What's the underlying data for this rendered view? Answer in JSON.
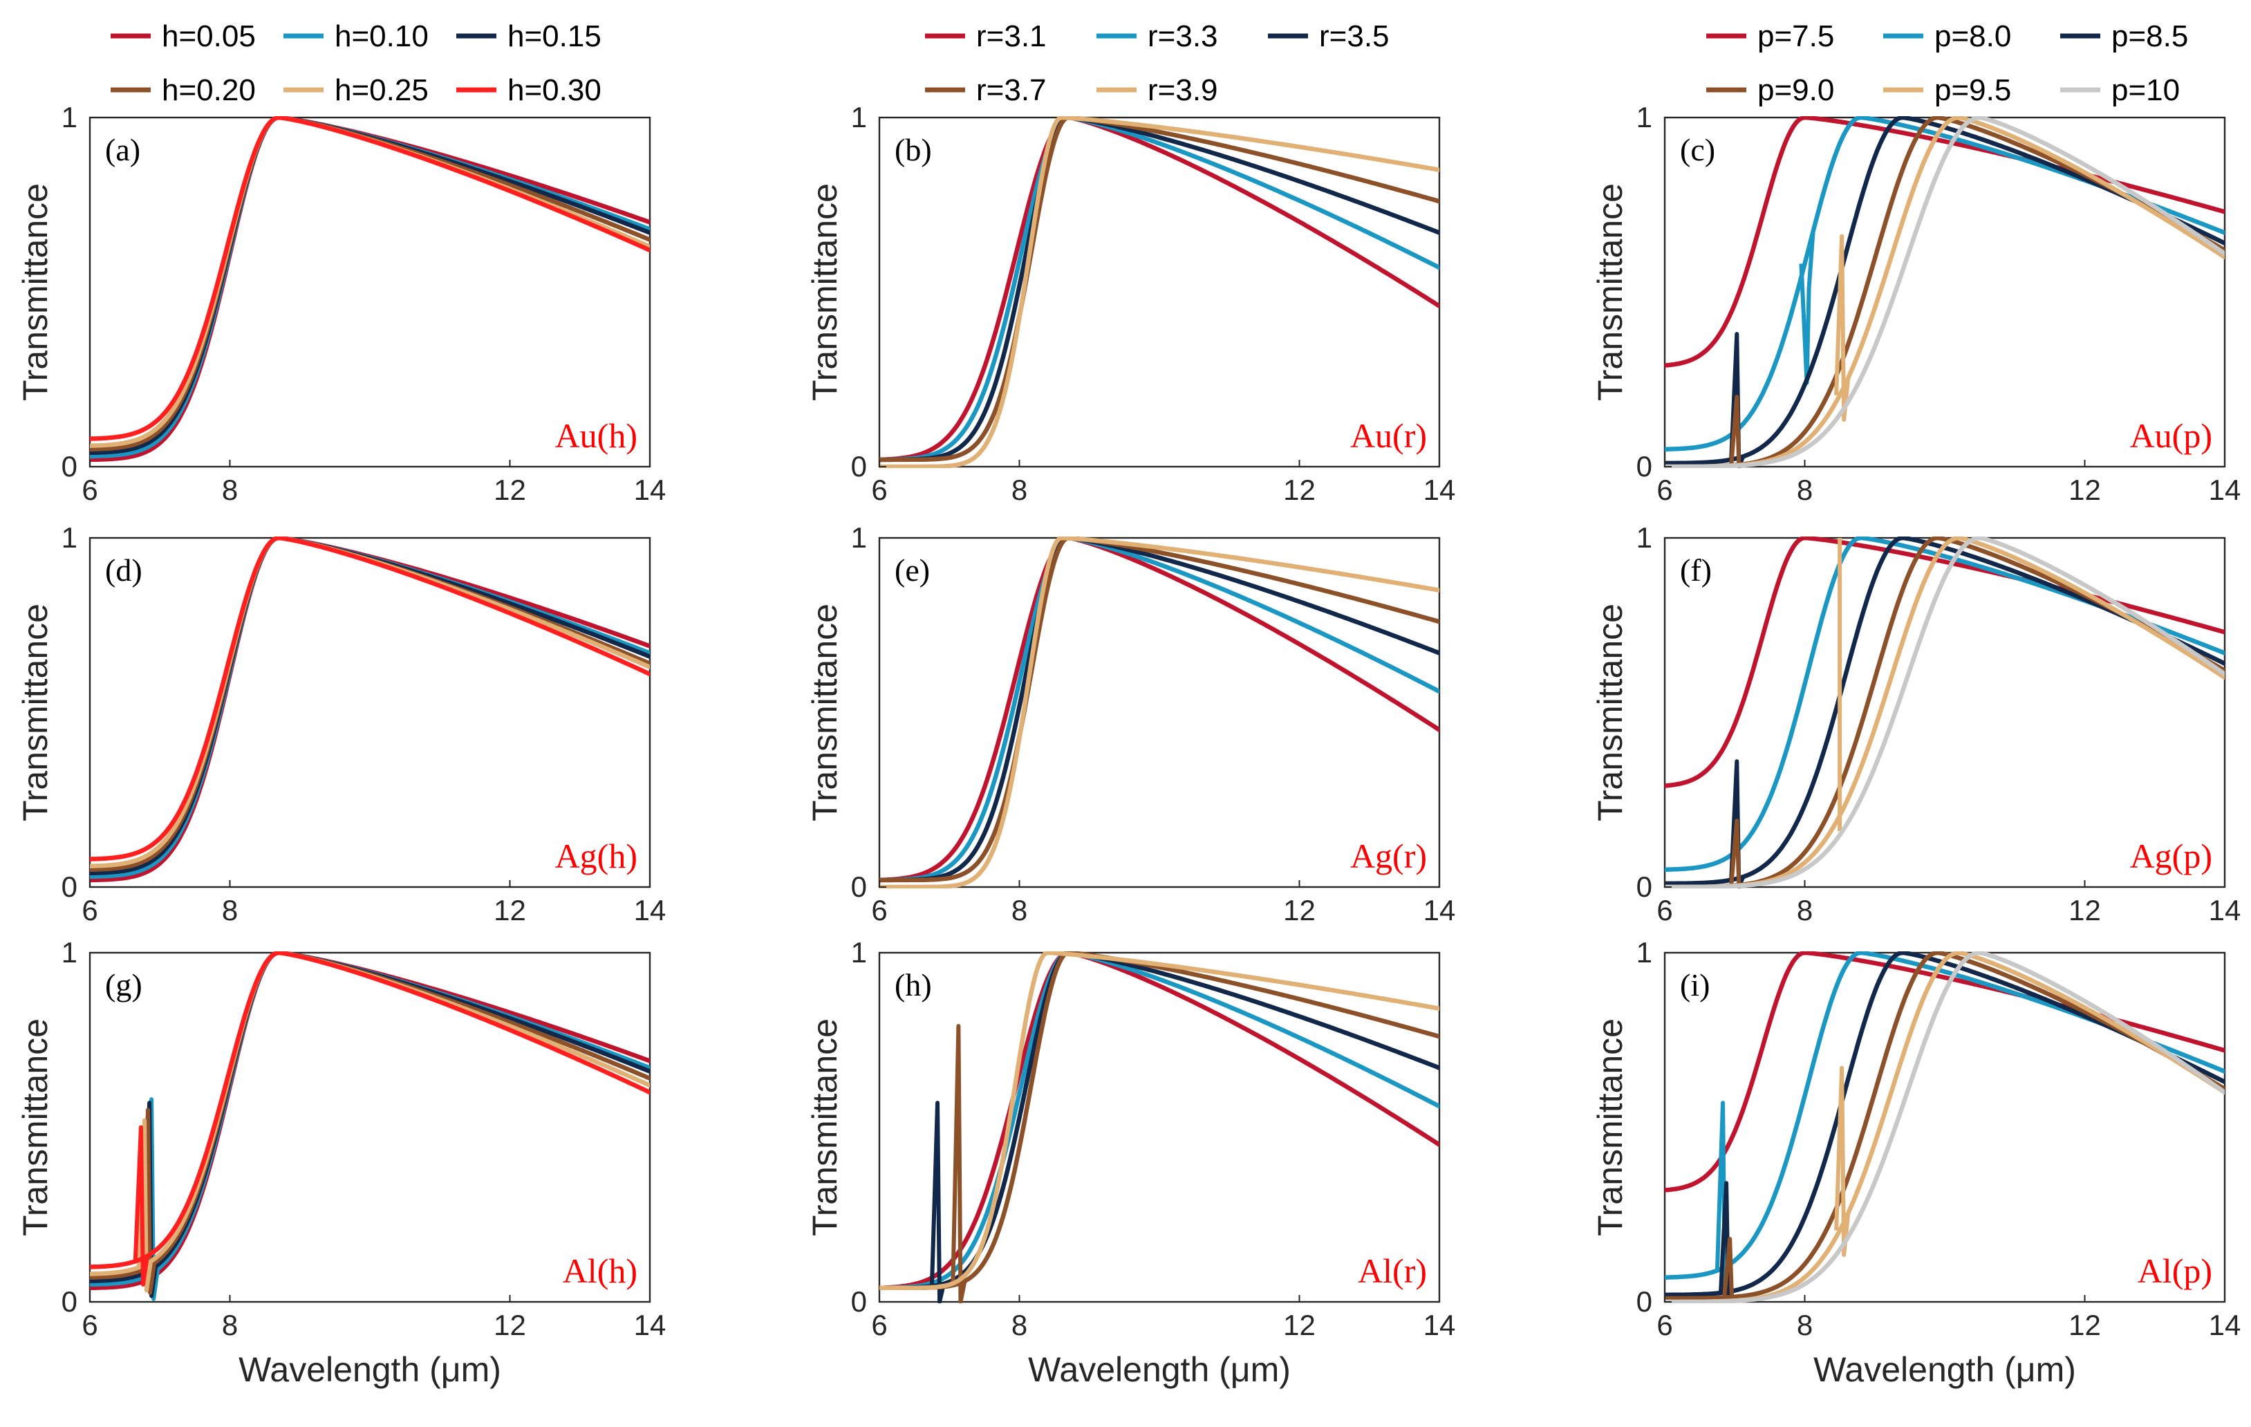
{
  "colors": {
    "crimson": "#c0142e",
    "teal": "#1a97c3",
    "navy": "#12284a",
    "brown": "#8c5128",
    "tan": "#e0b074",
    "red": "#ff1f1f",
    "lightgray": "#c8c8c8",
    "material_label": "#ff0000"
  },
  "axes_text": {
    "xlabel": "Wavelength (μm)",
    "ylabel": "Transmittance"
  },
  "legends": {
    "h": {
      "entries": [
        "h=0.05",
        "h=0.10",
        "h=0.15",
        "h=0.20",
        "h=0.25",
        "h=0.30"
      ],
      "colors": [
        "crimson",
        "teal",
        "navy",
        "brown",
        "tan",
        "red"
      ]
    },
    "r": {
      "entries": [
        "r=3.1",
        "r=3.3",
        "r=3.5",
        "r=3.7",
        "r=3.9"
      ],
      "colors": [
        "crimson",
        "teal",
        "navy",
        "brown",
        "tan"
      ]
    },
    "p": {
      "entries": [
        "p=7.5",
        "p=8.0",
        "p=8.5",
        "p=9.0",
        "p=9.5",
        "p=10"
      ],
      "colors": [
        "crimson",
        "teal",
        "navy",
        "brown",
        "tan",
        "lightgray"
      ]
    }
  },
  "chart_data": [
    {
      "id": "a",
      "panel_label": "(a)",
      "material_label": "Au(h)",
      "type": "line",
      "xlabel": "",
      "ylabel": "Transmittance",
      "xlim": [
        6,
        14
      ],
      "ylim": [
        0,
        1
      ],
      "xticks": [
        6,
        8,
        12,
        14
      ],
      "yticks": [
        0,
        1
      ],
      "param": "h",
      "series": [
        {
          "name": "h=0.05",
          "color": "crimson",
          "peak_x": 8.7,
          "start_y": 0.02,
          "w_left": 0.98,
          "end_y": 0.7
        },
        {
          "name": "h=0.10",
          "color": "teal",
          "peak_x": 8.7,
          "start_y": 0.03,
          "w_left": 0.99,
          "end_y": 0.68
        },
        {
          "name": "h=0.15",
          "color": "navy",
          "peak_x": 8.7,
          "start_y": 0.04,
          "w_left": 1.0,
          "end_y": 0.67
        },
        {
          "name": "h=0.20",
          "color": "brown",
          "peak_x": 8.7,
          "start_y": 0.05,
          "w_left": 1.01,
          "end_y": 0.65
        },
        {
          "name": "h=0.25",
          "color": "tan",
          "peak_x": 8.7,
          "start_y": 0.06,
          "w_left": 1.02,
          "end_y": 0.63
        },
        {
          "name": "h=0.30",
          "color": "red",
          "peak_x": 8.7,
          "start_y": 0.08,
          "w_left": 1.03,
          "end_y": 0.62
        }
      ]
    },
    {
      "id": "b",
      "panel_label": "(b)",
      "material_label": "Au(r)",
      "type": "line",
      "xlabel": "",
      "ylabel": "Transmittance",
      "xlim": [
        6,
        14
      ],
      "ylim": [
        0,
        1
      ],
      "xticks": [
        6,
        8,
        12,
        14
      ],
      "yticks": [
        0,
        1
      ],
      "param": "r",
      "series": [
        {
          "name": "r=3.1",
          "color": "crimson",
          "peak_x": 8.7,
          "start_y": 0.02,
          "w_left": 1.05,
          "end_y": 0.46
        },
        {
          "name": "r=3.3",
          "color": "teal",
          "peak_x": 8.7,
          "start_y": 0.02,
          "w_left": 0.95,
          "end_y": 0.57
        },
        {
          "name": "r=3.5",
          "color": "navy",
          "peak_x": 8.7,
          "start_y": 0.02,
          "w_left": 0.85,
          "end_y": 0.67
        },
        {
          "name": "r=3.7",
          "color": "brown",
          "peak_x": 8.7,
          "start_y": 0.02,
          "w_left": 0.75,
          "end_y": 0.76
        },
        {
          "name": "r=3.9",
          "color": "tan",
          "peak_x": 8.6,
          "start_y": 0.0,
          "w_left": 0.65,
          "end_y": 0.85
        }
      ]
    },
    {
      "id": "c",
      "panel_label": "(c)",
      "material_label": "Au(p)",
      "type": "line",
      "xlabel": "",
      "ylabel": "Transmittance",
      "xlim": [
        6,
        14
      ],
      "ylim": [
        0,
        1
      ],
      "xticks": [
        6,
        8,
        12,
        14
      ],
      "yticks": [
        0,
        1
      ],
      "param": "p",
      "series": [
        {
          "name": "p=7.5",
          "color": "crimson",
          "peak_x": 8.0,
          "start_y": 0.29,
          "w_left": 0.85,
          "end_y": 0.73
        },
        {
          "name": "p=8.0",
          "color": "teal",
          "peak_x": 8.8,
          "start_y": 0.05,
          "w_left": 1.05,
          "end_y": 0.67,
          "kink": {
            "x": 8.0,
            "y": 0.24
          }
        },
        {
          "name": "p=8.5",
          "color": "navy",
          "peak_x": 9.4,
          "start_y": 0.01,
          "w_left": 1.15,
          "end_y": 0.64,
          "kink": {
            "x": 7.0,
            "y": 0.38
          }
        },
        {
          "name": "p=9.0",
          "color": "brown",
          "peak_x": 9.9,
          "start_y": 0.0,
          "w_left": 1.25,
          "end_y": 0.62,
          "kink": {
            "x": 7.0,
            "y": 0.2
          }
        },
        {
          "name": "p=9.5",
          "color": "tan",
          "peak_x": 10.2,
          "start_y": 0.0,
          "w_left": 1.35,
          "end_y": 0.6,
          "kink": {
            "x": 8.5,
            "y": 0.66
          }
        },
        {
          "name": "p=10",
          "color": "lightgray",
          "peak_x": 10.5,
          "start_y": 0.0,
          "w_left": 1.45,
          "end_y": 0.61
        }
      ]
    },
    {
      "id": "d",
      "panel_label": "(d)",
      "material_label": "Ag(h)",
      "type": "line",
      "xlabel": "",
      "ylabel": "Transmittance",
      "xlim": [
        6,
        14
      ],
      "ylim": [
        0,
        1
      ],
      "xticks": [
        6,
        8,
        12,
        14
      ],
      "yticks": [
        0,
        1
      ],
      "param": "h",
      "series": [
        {
          "name": "h=0.05",
          "color": "crimson",
          "peak_x": 8.7,
          "start_y": 0.02,
          "w_left": 0.98,
          "end_y": 0.69
        },
        {
          "name": "h=0.10",
          "color": "teal",
          "peak_x": 8.7,
          "start_y": 0.03,
          "w_left": 0.99,
          "end_y": 0.67
        },
        {
          "name": "h=0.15",
          "color": "navy",
          "peak_x": 8.7,
          "start_y": 0.04,
          "w_left": 1.0,
          "end_y": 0.66
        },
        {
          "name": "h=0.20",
          "color": "brown",
          "peak_x": 8.7,
          "start_y": 0.05,
          "w_left": 1.01,
          "end_y": 0.64
        },
        {
          "name": "h=0.25",
          "color": "tan",
          "peak_x": 8.7,
          "start_y": 0.06,
          "w_left": 1.02,
          "end_y": 0.63
        },
        {
          "name": "h=0.30",
          "color": "red",
          "peak_x": 8.7,
          "start_y": 0.08,
          "w_left": 1.03,
          "end_y": 0.61
        }
      ]
    },
    {
      "id": "e",
      "panel_label": "(e)",
      "material_label": "Ag(r)",
      "type": "line",
      "xlabel": "",
      "ylabel": "Transmittance",
      "xlim": [
        6,
        14
      ],
      "ylim": [
        0,
        1
      ],
      "xticks": [
        6,
        8,
        12,
        14
      ],
      "yticks": [
        0,
        1
      ],
      "param": "r",
      "series": [
        {
          "name": "r=3.1",
          "color": "crimson",
          "peak_x": 8.7,
          "start_y": 0.02,
          "w_left": 1.05,
          "end_y": 0.45
        },
        {
          "name": "r=3.3",
          "color": "teal",
          "peak_x": 8.7,
          "start_y": 0.02,
          "w_left": 0.95,
          "end_y": 0.56
        },
        {
          "name": "r=3.5",
          "color": "navy",
          "peak_x": 8.7,
          "start_y": 0.02,
          "w_left": 0.85,
          "end_y": 0.67
        },
        {
          "name": "r=3.7",
          "color": "brown",
          "peak_x": 8.7,
          "start_y": 0.02,
          "w_left": 0.75,
          "end_y": 0.76
        },
        {
          "name": "r=3.9",
          "color": "tan",
          "peak_x": 8.6,
          "start_y": 0.0,
          "w_left": 0.65,
          "end_y": 0.85
        }
      ]
    },
    {
      "id": "f",
      "panel_label": "(f)",
      "material_label": "Ag(p)",
      "type": "line",
      "xlabel": "",
      "ylabel": "Transmittance",
      "xlim": [
        6,
        14
      ],
      "ylim": [
        0,
        1
      ],
      "xticks": [
        6,
        8,
        12,
        14
      ],
      "yticks": [
        0,
        1
      ],
      "param": "p",
      "series": [
        {
          "name": "p=7.5",
          "color": "crimson",
          "peak_x": 8.0,
          "start_y": 0.29,
          "w_left": 0.85,
          "end_y": 0.73
        },
        {
          "name": "p=8.0",
          "color": "teal",
          "peak_x": 8.8,
          "start_y": 0.05,
          "w_left": 1.05,
          "end_y": 0.67
        },
        {
          "name": "p=8.5",
          "color": "navy",
          "peak_x": 9.4,
          "start_y": 0.01,
          "w_left": 1.15,
          "end_y": 0.64,
          "kink": {
            "x": 7.0,
            "y": 0.36
          }
        },
        {
          "name": "p=9.0",
          "color": "brown",
          "peak_x": 9.9,
          "start_y": 0.0,
          "w_left": 1.25,
          "end_y": 0.62,
          "kink": {
            "x": 7.0,
            "y": 0.19
          }
        },
        {
          "name": "p=9.5",
          "color": "tan",
          "peak_x": 10.2,
          "start_y": 0.0,
          "w_left": 1.35,
          "end_y": 0.6,
          "spike": {
            "x": 8.5,
            "top": 1.0,
            "bottom": 0.16
          }
        },
        {
          "name": "p=10",
          "color": "lightgray",
          "peak_x": 10.5,
          "start_y": 0.0,
          "w_left": 1.45,
          "end_y": 0.61
        }
      ]
    },
    {
      "id": "g",
      "panel_label": "(g)",
      "material_label": "Al(h)",
      "type": "line",
      "xlabel": "Wavelength (μm)",
      "ylabel": "Transmittance",
      "xlim": [
        6,
        14
      ],
      "ylim": [
        0,
        1
      ],
      "xticks": [
        6,
        8,
        12,
        14
      ],
      "yticks": [
        0,
        1
      ],
      "param": "h",
      "series": [
        {
          "name": "h=0.05",
          "color": "crimson",
          "peak_x": 8.7,
          "start_y": 0.04,
          "w_left": 0.98,
          "end_y": 0.69
        },
        {
          "name": "h=0.10",
          "color": "teal",
          "peak_x": 8.7,
          "start_y": 0.05,
          "w_left": 0.99,
          "end_y": 0.67,
          "kink": {
            "x": 6.85,
            "y": 0.58
          }
        },
        {
          "name": "h=0.15",
          "color": "navy",
          "peak_x": 8.7,
          "start_y": 0.06,
          "w_left": 1.0,
          "end_y": 0.66,
          "kink": {
            "x": 6.82,
            "y": 0.57
          }
        },
        {
          "name": "h=0.20",
          "color": "brown",
          "peak_x": 8.7,
          "start_y": 0.07,
          "w_left": 1.01,
          "end_y": 0.64,
          "kink": {
            "x": 6.8,
            "y": 0.55
          }
        },
        {
          "name": "h=0.25",
          "color": "tan",
          "peak_x": 8.7,
          "start_y": 0.08,
          "w_left": 1.02,
          "end_y": 0.62,
          "kink": {
            "x": 6.75,
            "y": 0.52
          }
        },
        {
          "name": "h=0.30",
          "color": "red",
          "peak_x": 8.7,
          "start_y": 0.1,
          "w_left": 1.03,
          "end_y": 0.6,
          "kink": {
            "x": 6.7,
            "y": 0.5
          }
        }
      ]
    },
    {
      "id": "h",
      "panel_label": "(h)",
      "material_label": "Al(r)",
      "type": "line",
      "xlabel": "Wavelength (μm)",
      "ylabel": "Transmittance",
      "xlim": [
        6,
        14
      ],
      "ylim": [
        0,
        1
      ],
      "xticks": [
        6,
        8,
        12,
        14
      ],
      "yticks": [
        0,
        1
      ],
      "param": "r",
      "series": [
        {
          "name": "r=3.1",
          "color": "crimson",
          "peak_x": 8.7,
          "start_y": 0.04,
          "w_left": 1.05,
          "end_y": 0.45
        },
        {
          "name": "r=3.3",
          "color": "teal",
          "peak_x": 8.7,
          "start_y": 0.04,
          "w_left": 0.95,
          "end_y": 0.56
        },
        {
          "name": "r=3.5",
          "color": "navy",
          "peak_x": 8.7,
          "start_y": 0.04,
          "w_left": 0.85,
          "end_y": 0.67,
          "kink": {
            "x": 6.8,
            "y": 0.57
          }
        },
        {
          "name": "r=3.7",
          "color": "brown",
          "peak_x": 8.7,
          "start_y": 0.04,
          "w_left": 0.75,
          "end_y": 0.76,
          "kink": {
            "x": 7.1,
            "y": 0.79
          }
        },
        {
          "name": "r=3.9",
          "color": "tan",
          "peak_x": 8.4,
          "start_y": 0.04,
          "w_left": 0.65,
          "end_y": 0.84
        }
      ]
    },
    {
      "id": "i",
      "panel_label": "(i)",
      "material_label": "Al(p)",
      "type": "line",
      "xlabel": "Wavelength (μm)",
      "ylabel": "Transmittance",
      "xlim": [
        6,
        14
      ],
      "ylim": [
        0,
        1
      ],
      "xticks": [
        6,
        8,
        12,
        14
      ],
      "yticks": [
        0,
        1
      ],
      "param": "p",
      "series": [
        {
          "name": "p=7.5",
          "color": "crimson",
          "peak_x": 8.0,
          "start_y": 0.32,
          "w_left": 0.85,
          "end_y": 0.72
        },
        {
          "name": "p=8.0",
          "color": "teal",
          "peak_x": 8.8,
          "start_y": 0.07,
          "w_left": 1.05,
          "end_y": 0.66,
          "kink": {
            "x": 6.8,
            "y": 0.57
          }
        },
        {
          "name": "p=8.5",
          "color": "navy",
          "peak_x": 9.4,
          "start_y": 0.02,
          "w_left": 1.15,
          "end_y": 0.63,
          "kink": {
            "x": 6.85,
            "y": 0.34
          }
        },
        {
          "name": "p=9.0",
          "color": "brown",
          "peak_x": 9.9,
          "start_y": 0.01,
          "w_left": 1.25,
          "end_y": 0.61,
          "kink": {
            "x": 6.9,
            "y": 0.18
          }
        },
        {
          "name": "p=9.5",
          "color": "tan",
          "peak_x": 10.2,
          "start_y": 0.0,
          "w_left": 1.35,
          "end_y": 0.6,
          "kink": {
            "x": 8.5,
            "y": 0.67
          }
        },
        {
          "name": "p=10",
          "color": "lightgray",
          "peak_x": 10.5,
          "start_y": 0.0,
          "w_left": 1.45,
          "end_y": 0.6
        }
      ]
    }
  ]
}
